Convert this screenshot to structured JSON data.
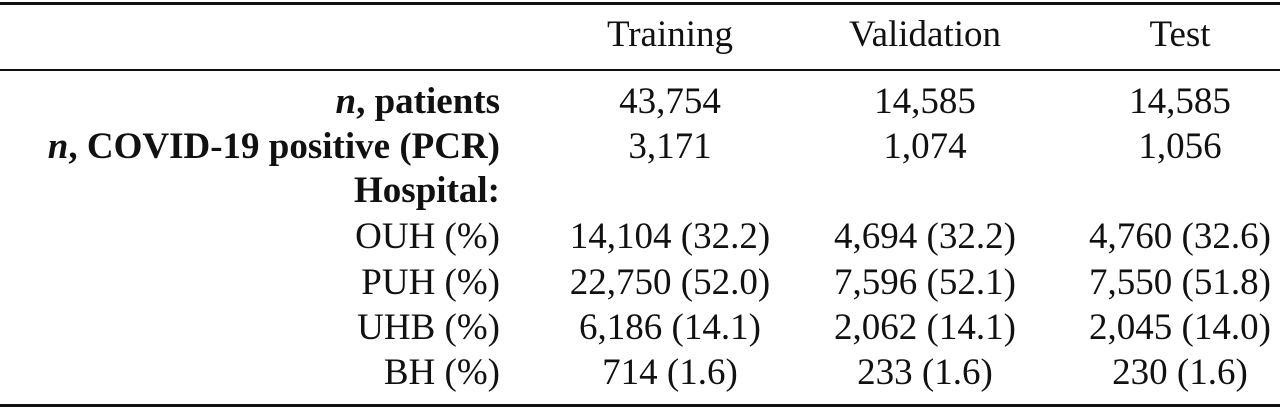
{
  "columns": [
    "Training",
    "Validation",
    "Test"
  ],
  "rows": [
    {
      "label_prefix": "n",
      "label_rest": ", patients",
      "bold": true,
      "values": [
        "43,754",
        "14,585",
        "14,585"
      ]
    },
    {
      "label_prefix": "n",
      "label_rest": ", COVID-19 positive (PCR)",
      "bold": true,
      "values": [
        "3,171",
        "1,074",
        "1,056"
      ]
    },
    {
      "label_prefix": "",
      "label_rest": "Hospital:",
      "bold": true,
      "values": [
        "",
        "",
        ""
      ]
    },
    {
      "label_prefix": "",
      "label_rest": "OUH (%)",
      "bold": false,
      "values": [
        "14,104 (32.2)",
        "4,694 (32.2)",
        "4,760 (32.6)"
      ]
    },
    {
      "label_prefix": "",
      "label_rest": "PUH (%)",
      "bold": false,
      "values": [
        "22,750 (52.0)",
        "7,596 (52.1)",
        "7,550 (51.8)"
      ]
    },
    {
      "label_prefix": "",
      "label_rest": "UHB (%)",
      "bold": false,
      "values": [
        "6,186 (14.1)",
        "2,062 (14.1)",
        "2,045 (14.0)"
      ]
    },
    {
      "label_prefix": "",
      "label_rest": "BH (%)",
      "bold": false,
      "values": [
        "714 (1.6)",
        "233 (1.6)",
        "230 (1.6)"
      ]
    }
  ]
}
